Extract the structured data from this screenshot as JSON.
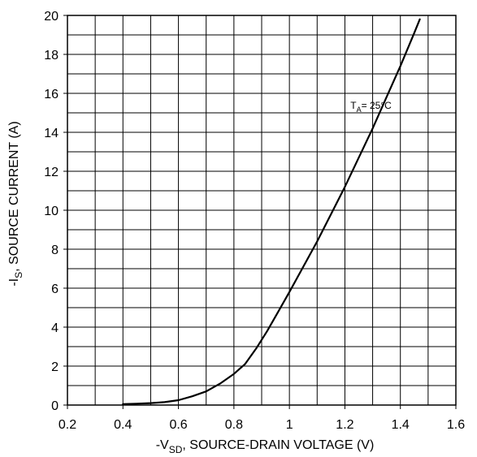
{
  "chart_data": {
    "type": "line",
    "title": "",
    "xlabel": {
      "prefix": "-V",
      "subscript": "SD",
      "suffix": ", SOURCE-DRAIN VOLTAGE (V)"
    },
    "ylabel": {
      "prefix": "-I",
      "subscript": "S",
      "suffix": ", SOURCE CURRENT (A)"
    },
    "xlim": [
      0.2,
      1.6
    ],
    "ylim": [
      0,
      20
    ],
    "x_tick_labels": [
      "0.2",
      "0.4",
      "0.6",
      "0.8",
      "1",
      "1.2",
      "1.4",
      "1.6"
    ],
    "y_tick_labels": [
      "0",
      "2",
      "4",
      "6",
      "8",
      "10",
      "12",
      "14",
      "16",
      "18",
      "20"
    ],
    "grid": true,
    "x_grid_step": 0.1,
    "y_grid_step": 1,
    "annotation": {
      "prefix": "T",
      "subscript": "A",
      "suffix": "= 25°C",
      "x": 1.22,
      "y": 15.2
    },
    "series": [
      {
        "x": [
          0.4,
          0.45,
          0.5,
          0.55,
          0.6,
          0.65,
          0.7,
          0.75,
          0.8,
          0.84,
          0.88,
          0.92,
          0.96,
          1.0,
          1.05,
          1.1,
          1.15,
          1.2,
          1.25,
          1.3,
          1.35,
          1.4,
          1.45,
          1.47
        ],
        "y": [
          0.05,
          0.07,
          0.1,
          0.15,
          0.25,
          0.45,
          0.7,
          1.1,
          1.6,
          2.1,
          2.9,
          3.8,
          4.8,
          5.8,
          7.1,
          8.4,
          9.8,
          11.2,
          12.7,
          14.2,
          15.8,
          17.4,
          19.1,
          19.8
        ],
        "color": "#000000"
      }
    ]
  }
}
